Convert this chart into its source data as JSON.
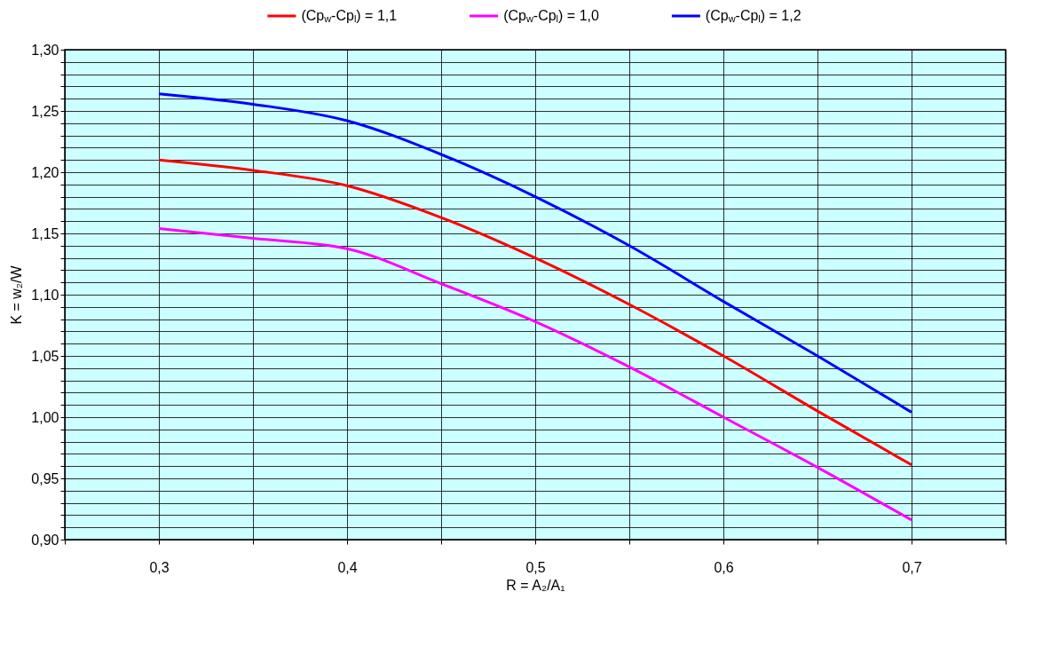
{
  "chart_data": {
    "type": "line",
    "xlabel": "R = A₂/A₁",
    "ylabel": "K = w₂/W",
    "x": [
      0.3,
      0.35,
      0.4,
      0.45,
      0.5,
      0.55,
      0.6,
      0.65,
      0.7
    ],
    "series": [
      {
        "name": "(Cp$_{w}$-Cp$_{l}$) = 1,1",
        "color": "#ff0000",
        "values": [
          1.21,
          1.2015,
          1.189,
          1.163,
          1.13,
          1.092,
          1.05,
          1.005,
          0.961
        ]
      },
      {
        "name": "(Cp$_{w}$-Cp$_{l}$) = 1,0",
        "color": "#ff00ff",
        "values": [
          1.154,
          1.146,
          1.1375,
          1.109,
          1.078,
          1.041,
          1.0,
          0.959,
          0.916
        ]
      },
      {
        "name": "(Cp$_{w}$-Cp$_{l}$) = 1,2",
        "color": "#0000ff",
        "values": [
          1.264,
          1.2555,
          1.242,
          1.2145,
          1.18,
          1.14,
          1.0945,
          1.05,
          1.004
        ]
      }
    ],
    "xlim": [
      0.25,
      0.75
    ],
    "xticks": [
      {
        "value": 0.25,
        "label": null
      },
      {
        "value": 0.3,
        "label": "0,3"
      },
      {
        "value": 0.35,
        "label": null
      },
      {
        "value": 0.4,
        "label": "0,4"
      },
      {
        "value": 0.45,
        "label": null
      },
      {
        "value": 0.5,
        "label": "0,5"
      },
      {
        "value": 0.55,
        "label": null
      },
      {
        "value": 0.6,
        "label": "0,6"
      },
      {
        "value": 0.65,
        "label": null
      },
      {
        "value": 0.7,
        "label": "0,7"
      },
      {
        "value": 0.75,
        "label": null
      }
    ],
    "ylim": [
      0.9,
      1.3
    ],
    "yticks": [
      {
        "value": 0.9,
        "label": "0,90"
      },
      {
        "value": 0.91,
        "label": null
      },
      {
        "value": 0.92,
        "label": null
      },
      {
        "value": 0.93,
        "label": null
      },
      {
        "value": 0.94,
        "label": null
      },
      {
        "value": 0.95,
        "label": "0,95"
      },
      {
        "value": 0.96,
        "label": null
      },
      {
        "value": 0.97,
        "label": null
      },
      {
        "value": 0.98,
        "label": null
      },
      {
        "value": 0.99,
        "label": null
      },
      {
        "value": 1.0,
        "label": "1,00"
      },
      {
        "value": 1.01,
        "label": null
      },
      {
        "value": 1.02,
        "label": null
      },
      {
        "value": 1.03,
        "label": null
      },
      {
        "value": 1.04,
        "label": null
      },
      {
        "value": 1.05,
        "label": "1,05"
      },
      {
        "value": 1.06,
        "label": null
      },
      {
        "value": 1.07,
        "label": null
      },
      {
        "value": 1.08,
        "label": null
      },
      {
        "value": 1.09,
        "label": null
      },
      {
        "value": 1.1,
        "label": "1,10"
      },
      {
        "value": 1.11,
        "label": null
      },
      {
        "value": 1.12,
        "label": null
      },
      {
        "value": 1.13,
        "label": null
      },
      {
        "value": 1.14,
        "label": null
      },
      {
        "value": 1.15,
        "label": "1,15"
      },
      {
        "value": 1.16,
        "label": null
      },
      {
        "value": 1.17,
        "label": null
      },
      {
        "value": 1.18,
        "label": null
      },
      {
        "value": 1.19,
        "label": null
      },
      {
        "value": 1.2,
        "label": "1,20"
      },
      {
        "value": 1.21,
        "label": null
      },
      {
        "value": 1.22,
        "label": null
      },
      {
        "value": 1.23,
        "label": null
      },
      {
        "value": 1.24,
        "label": null
      },
      {
        "value": 1.25,
        "label": "1,25"
      },
      {
        "value": 1.26,
        "label": null
      },
      {
        "value": 1.27,
        "label": null
      },
      {
        "value": 1.28,
        "label": null
      },
      {
        "value": 1.29,
        "label": null
      },
      {
        "value": 1.3,
        "label": "1,30"
      }
    ],
    "grid": true,
    "legend": "top",
    "marker": "none",
    "line_style": "solid"
  }
}
